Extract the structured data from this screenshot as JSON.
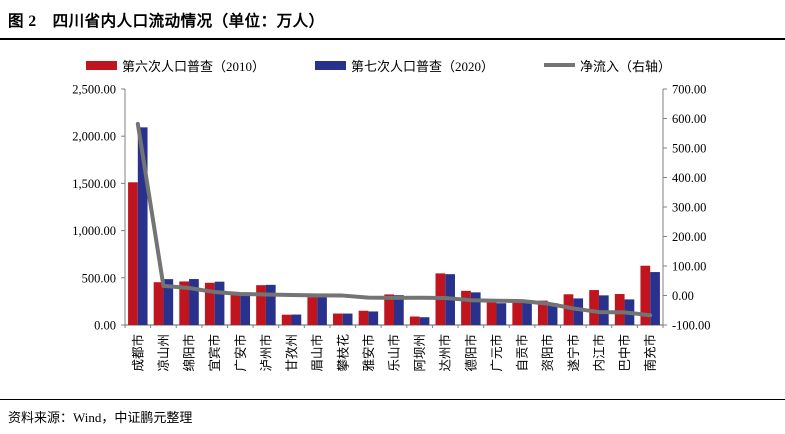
{
  "header": {
    "title": "图 2　四川省内人口流动情况（单位：万人）"
  },
  "footer": {
    "source": "资料来源：Wind，中证鹏元整理"
  },
  "colors": {
    "census2010": "#C0141E",
    "census2020": "#28328C",
    "net_line": "#747474",
    "axis": "#808080",
    "text": "#000000"
  },
  "chart_data": {
    "type": "bar",
    "title": "四川省内人口流动情况",
    "unit": "万人",
    "categories": [
      "成都市",
      "凉山州",
      "绵阳市",
      "宜宾市",
      "广安市",
      "泸州市",
      "甘孜州",
      "眉山市",
      "攀枝花",
      "雅安市",
      "乐山市",
      "阿坝州",
      "达州市",
      "德阳市",
      "广元市",
      "自贡市",
      "资阳市",
      "遂宁市",
      "内江市",
      "巴中市",
      "南充市"
    ],
    "series": [
      {
        "name": "第六次人口普查（2010）",
        "type": "bar",
        "axis": "left",
        "color": "#C0141E",
        "values": [
          1511.9,
          453.3,
          461.4,
          447.2,
          320.5,
          421.8,
          109.2,
          295.0,
          121.4,
          150.7,
          323.9,
          89.9,
          546.8,
          361.6,
          248.4,
          267.9,
          258.5,
          325.3,
          370.3,
          328.4,
          627.9
        ]
      },
      {
        "name": "第七次人口普查（2020）",
        "type": "bar",
        "axis": "left",
        "color": "#28328C",
        "values": [
          2093.8,
          485.9,
          486.8,
          458.9,
          325.5,
          425.4,
          110.8,
          295.5,
          121.2,
          143.5,
          316.0,
          82.3,
          538.5,
          345.7,
          230.7,
          248.9,
          230.9,
          281.4,
          314.1,
          271.3,
          560.8
        ]
      },
      {
        "name": "净流入（右轴）",
        "type": "line",
        "axis": "right",
        "color": "#747474",
        "values": [
          581.9,
          32.6,
          25.4,
          11.7,
          5.0,
          3.6,
          1.6,
          0.5,
          -0.2,
          -7.2,
          -7.9,
          -7.6,
          -8.3,
          -15.9,
          -17.7,
          -19.0,
          -27.6,
          -43.9,
          -56.2,
          -57.1,
          -67.1
        ]
      }
    ],
    "left_axis": {
      "min": 0,
      "max": 2500,
      "step": 500,
      "format": "#,##0.00"
    },
    "right_axis": {
      "min": -100,
      "max": 700,
      "step": 100,
      "format": "#,##0.00"
    },
    "grid": false,
    "legend_position": "top"
  }
}
